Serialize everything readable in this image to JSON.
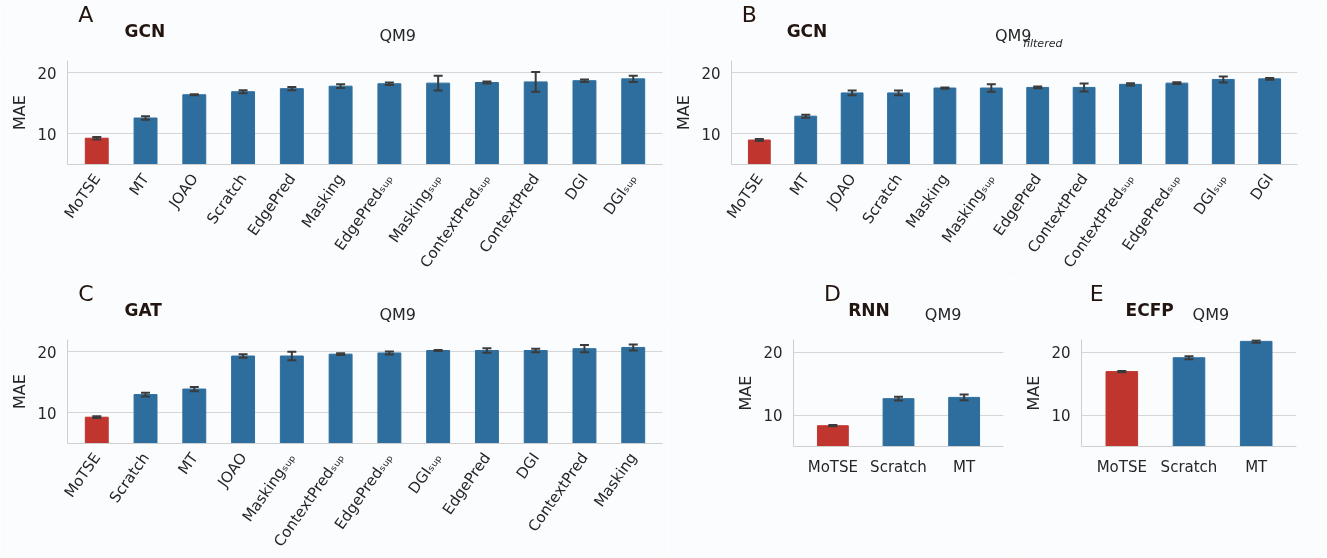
{
  "chart_data": [
    {
      "type": "bar",
      "title": "QM9",
      "ylabel": "MAE",
      "annotations": [
        "A",
        "GCN"
      ],
      "categories": [
        "MoTSE",
        "MT",
        "JOAO",
        "Scratch",
        "EdgePred",
        "Masking",
        "EdgePredₛᵤₚ",
        "Maskingₛᵤₚ",
        "ContextPredₛᵤₚ",
        "ContextPred",
        "DGI",
        "DGIₛᵤₚ"
      ],
      "values": [
        9.3,
        12.6,
        16.4,
        16.9,
        17.4,
        17.8,
        18.2,
        18.3,
        18.4,
        18.5,
        18.7,
        19.0
      ],
      "errors": [
        0.2,
        0.3,
        0.1,
        0.25,
        0.25,
        0.3,
        0.2,
        1.2,
        0.15,
        1.6,
        0.2,
        0.5
      ],
      "colors": [
        "#c0362f",
        "#2e6e9e",
        "#2e6e9e",
        "#2e6e9e",
        "#2e6e9e",
        "#2e6e9e",
        "#2e6e9e",
        "#2e6e9e",
        "#2e6e9e",
        "#2e6e9e",
        "#2e6e9e",
        "#2e6e9e"
      ],
      "ylim": [
        5,
        22
      ],
      "yticks": [
        10,
        20
      ],
      "grid": "y"
    },
    {
      "type": "bar",
      "title": "QM9$_{filtered}$",
      "ylabel": "MAE",
      "annotations": [
        "B",
        "GCN"
      ],
      "categories": [
        "MoTSE",
        "MT",
        "JOAO",
        "Scratch",
        "Masking",
        "Maskingₛᵤₚ",
        "EdgePred",
        "ContextPred",
        "ContextPredₛᵤₚ",
        "EdgePredₛᵤₚ",
        "DGIₛᵤₚ",
        "DGI"
      ],
      "values": [
        9.0,
        12.9,
        16.7,
        16.7,
        17.5,
        17.5,
        17.6,
        17.6,
        18.1,
        18.3,
        18.9,
        19.0
      ],
      "errors": [
        0.15,
        0.25,
        0.4,
        0.4,
        0.1,
        0.6,
        0.15,
        0.65,
        0.2,
        0.15,
        0.5,
        0.15
      ],
      "colors": [
        "#c0362f",
        "#2e6e9e",
        "#2e6e9e",
        "#2e6e9e",
        "#2e6e9e",
        "#2e6e9e",
        "#2e6e9e",
        "#2e6e9e",
        "#2e6e9e",
        "#2e6e9e",
        "#2e6e9e",
        "#2e6e9e"
      ],
      "ylim": [
        5,
        22
      ],
      "yticks": [
        10,
        20
      ],
      "grid": "y"
    },
    {
      "type": "bar",
      "title": "QM9",
      "ylabel": "MAE",
      "annotations": [
        "C",
        "GAT"
      ],
      "categories": [
        "MoTSE",
        "Scratch",
        "MT",
        "JOAO",
        "Maskingₛᵤₚ",
        "ContextPredₛᵤₚ",
        "EdgePredₛᵤₚ",
        "DGIₛᵤₚ",
        "EdgePred",
        "DGI",
        "ContextPred",
        "Masking"
      ],
      "values": [
        9.3,
        13.0,
        13.9,
        19.3,
        19.3,
        19.6,
        19.8,
        20.2,
        20.2,
        20.2,
        20.5,
        20.7
      ],
      "errors": [
        0.15,
        0.3,
        0.35,
        0.3,
        0.7,
        0.15,
        0.25,
        0.1,
        0.35,
        0.3,
        0.6,
        0.5
      ],
      "colors": [
        "#c0362f",
        "#2e6e9e",
        "#2e6e9e",
        "#2e6e9e",
        "#2e6e9e",
        "#2e6e9e",
        "#2e6e9e",
        "#2e6e9e",
        "#2e6e9e",
        "#2e6e9e",
        "#2e6e9e",
        "#2e6e9e"
      ],
      "ylim": [
        5,
        22
      ],
      "yticks": [
        10,
        20
      ],
      "grid": "y"
    },
    {
      "type": "bar",
      "title": "QM9",
      "ylabel": "MAE",
      "annotations": [
        "D",
        "RNN"
      ],
      "categories": [
        "MoTSE",
        "Scratch",
        "MT"
      ],
      "values": [
        8.3,
        12.6,
        12.8
      ],
      "errors": [
        0.1,
        0.3,
        0.45
      ],
      "colors": [
        "#c0362f",
        "#2e6e9e",
        "#2e6e9e"
      ],
      "ylim": [
        5,
        22
      ],
      "yticks": [
        10,
        20
      ],
      "grid": "y"
    },
    {
      "type": "bar",
      "title": "QM9",
      "ylabel": "MAE",
      "annotations": [
        "E",
        "ECFP"
      ],
      "categories": [
        "MoTSE",
        "Scratch",
        "MT"
      ],
      "values": [
        16.9,
        19.1,
        21.7
      ],
      "errors": [
        0.1,
        0.25,
        0.2
      ],
      "colors": [
        "#c0362f",
        "#2e6e9e",
        "#2e6e9e"
      ],
      "ylim": [
        5,
        22
      ],
      "yticks": [
        10,
        20
      ],
      "grid": "y"
    }
  ]
}
